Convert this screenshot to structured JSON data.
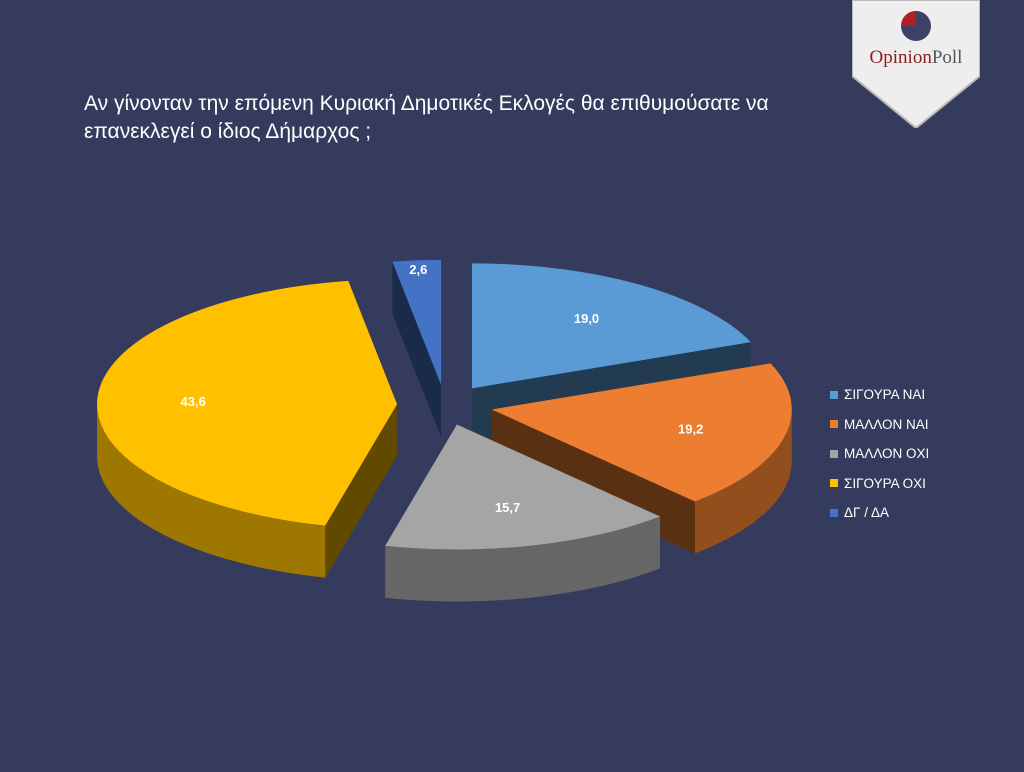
{
  "brand": {
    "word1": "Opinion",
    "word2": "Poll"
  },
  "chart_data": {
    "type": "pie",
    "title": "Αν γίνονταν την επόμενη Κυριακή Δημοτικές Εκλογές θα επιθυμούσατε να επανεκλεγεί ο ίδιος Δήμαρχος ;",
    "legend_position": "right",
    "exploded": true,
    "three_d": true,
    "slices": [
      {
        "label": "ΣΙΓΟΥΡΑ ΝΑΙ",
        "value": 19.0,
        "value_label": "19,0",
        "color": "#5b9bd5"
      },
      {
        "label": "ΜΑΛΛΟΝ ΝΑΙ",
        "value": 19.2,
        "value_label": "19,2",
        "color": "#ed7d31"
      },
      {
        "label": "ΜΑΛΛΟΝ ΟΧΙ",
        "value": 15.7,
        "value_label": "15,7",
        "color": "#a5a5a5"
      },
      {
        "label": "ΣΙΓΟΥΡΑ ΟΧΙ",
        "value": 43.6,
        "value_label": "43,6",
        "color": "#ffc000"
      },
      {
        "label": "ΔΓ / ΔΑ",
        "value": 2.6,
        "value_label": "2,6",
        "color": "#4472c4"
      }
    ]
  }
}
